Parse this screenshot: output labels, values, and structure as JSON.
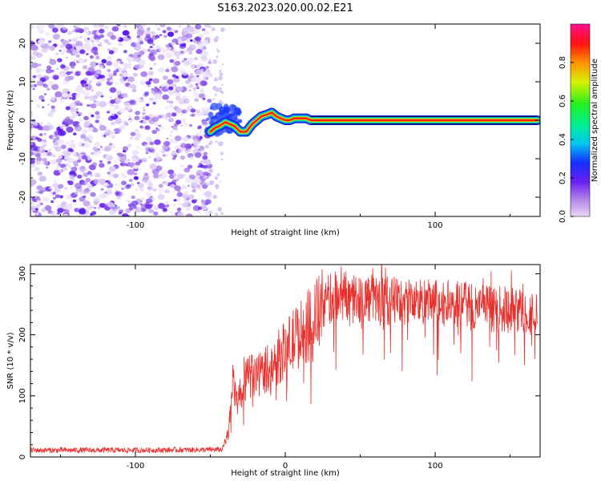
{
  "title": "S163.2023.020.00.02.E21",
  "chart_data": [
    {
      "type": "heatmap",
      "xlabel": "Height of straight line (km)",
      "ylabel": "Frequency (Hz)",
      "xlim": [
        -170,
        170
      ],
      "ylim": [
        -25,
        25
      ],
      "x_ticks": [
        -100,
        100
      ],
      "y_ticks": [
        -20,
        -10,
        0,
        10,
        20
      ],
      "noise_region": {
        "x_from": -170,
        "x_to": -50
      },
      "ridge": [
        {
          "x": -50,
          "y": -3
        },
        {
          "x": -47,
          "y": -2
        },
        {
          "x": -44,
          "y": -1.5
        },
        {
          "x": -40,
          "y": -0.5
        },
        {
          "x": -37,
          "y": -1
        },
        {
          "x": -34,
          "y": -1.5
        },
        {
          "x": -30,
          "y": -3
        },
        {
          "x": -26,
          "y": -3
        },
        {
          "x": -22,
          "y": -1
        },
        {
          "x": -19,
          "y": 0
        },
        {
          "x": -16,
          "y": 1
        },
        {
          "x": -12,
          "y": 1.5
        },
        {
          "x": -9,
          "y": 2
        },
        {
          "x": -6,
          "y": 1
        },
        {
          "x": -3,
          "y": 0.5
        },
        {
          "x": 0,
          "y": 0
        },
        {
          "x": 3,
          "y": 0
        },
        {
          "x": 6,
          "y": 0.5
        },
        {
          "x": 10,
          "y": 0.5
        },
        {
          "x": 14,
          "y": 0.5
        },
        {
          "x": 17,
          "y": 0
        },
        {
          "x": 168,
          "y": 0
        }
      ],
      "colorbar": {
        "label": "Normalized spectral amplitude",
        "range": [
          0,
          1
        ],
        "ticks": [
          "0.0",
          "0.2",
          "0.4",
          "0.6",
          "0.8"
        ]
      }
    },
    {
      "type": "line",
      "xlabel": "Height of straight line (km)",
      "ylabel": "SNR (10 * v/v)",
      "xlim": [
        -170,
        170
      ],
      "ylim": [
        0,
        315
      ],
      "x_ticks": [
        -100,
        0,
        100
      ],
      "y_ticks": [
        0,
        100,
        200,
        300
      ],
      "color": "#e8302c",
      "series": [
        {
          "x": -170,
          "y": 11
        },
        {
          "x": -100,
          "y": 11
        },
        {
          "x": -42,
          "y": 12
        },
        {
          "x": -38,
          "y": 40
        },
        {
          "x": -35,
          "y": 120
        },
        {
          "x": -32,
          "y": 90
        },
        {
          "x": -25,
          "y": 130
        },
        {
          "x": -15,
          "y": 140
        },
        {
          "x": -8,
          "y": 155
        },
        {
          "x": 0,
          "y": 175
        },
        {
          "x": 7,
          "y": 195
        },
        {
          "x": 14,
          "y": 210
        },
        {
          "x": 20,
          "y": 228
        },
        {
          "x": 25,
          "y": 245
        },
        {
          "x": 30,
          "y": 262
        },
        {
          "x": 40,
          "y": 265
        },
        {
          "x": 60,
          "y": 258
        },
        {
          "x": 80,
          "y": 255
        },
        {
          "x": 100,
          "y": 252
        },
        {
          "x": 120,
          "y": 248
        },
        {
          "x": 140,
          "y": 242
        },
        {
          "x": 160,
          "y": 240
        },
        {
          "x": 168,
          "y": 232
        }
      ]
    }
  ]
}
